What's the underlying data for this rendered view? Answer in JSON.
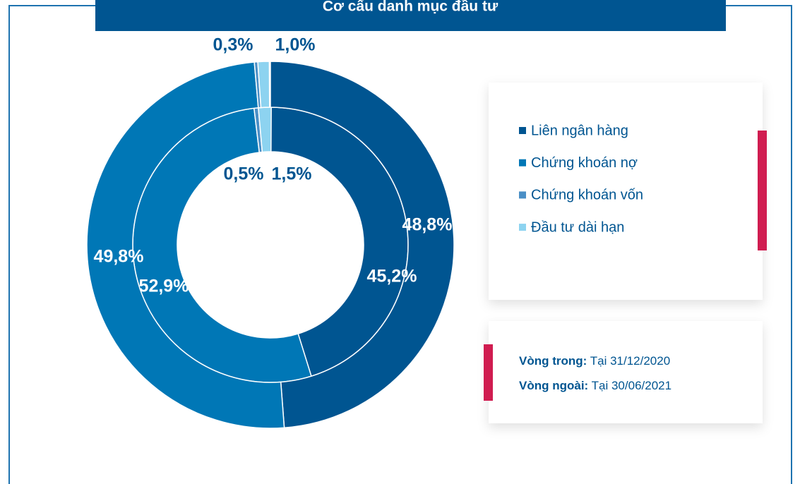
{
  "chart_data": {
    "type": "donut",
    "title": "Cơ cấu danh mục đầu tư",
    "categories": [
      "Liên ngân hàng",
      "Chứng khoán nợ",
      "Chứng khoán vốn",
      "Đầu tư dài hạn"
    ],
    "colors": [
      "#005591",
      "#0077b6",
      "#4a8fc6",
      "#8dd3f0"
    ],
    "series": [
      {
        "name": "Vòng trong:",
        "date": "Tại 31/12/2020",
        "values": [
          45.2,
          52.9,
          0.5,
          1.5
        ],
        "value_labels": [
          "45,2%",
          "52,9%",
          "0,5%",
          "1,5%"
        ]
      },
      {
        "name": "Vòng ngoài:",
        "date": "Tại 30/06/2021",
        "values": [
          48.8,
          49.8,
          0.3,
          1.0
        ],
        "value_labels": [
          "48,8%",
          "49,8%",
          "0,3%",
          "1,0%"
        ]
      }
    ]
  }
}
